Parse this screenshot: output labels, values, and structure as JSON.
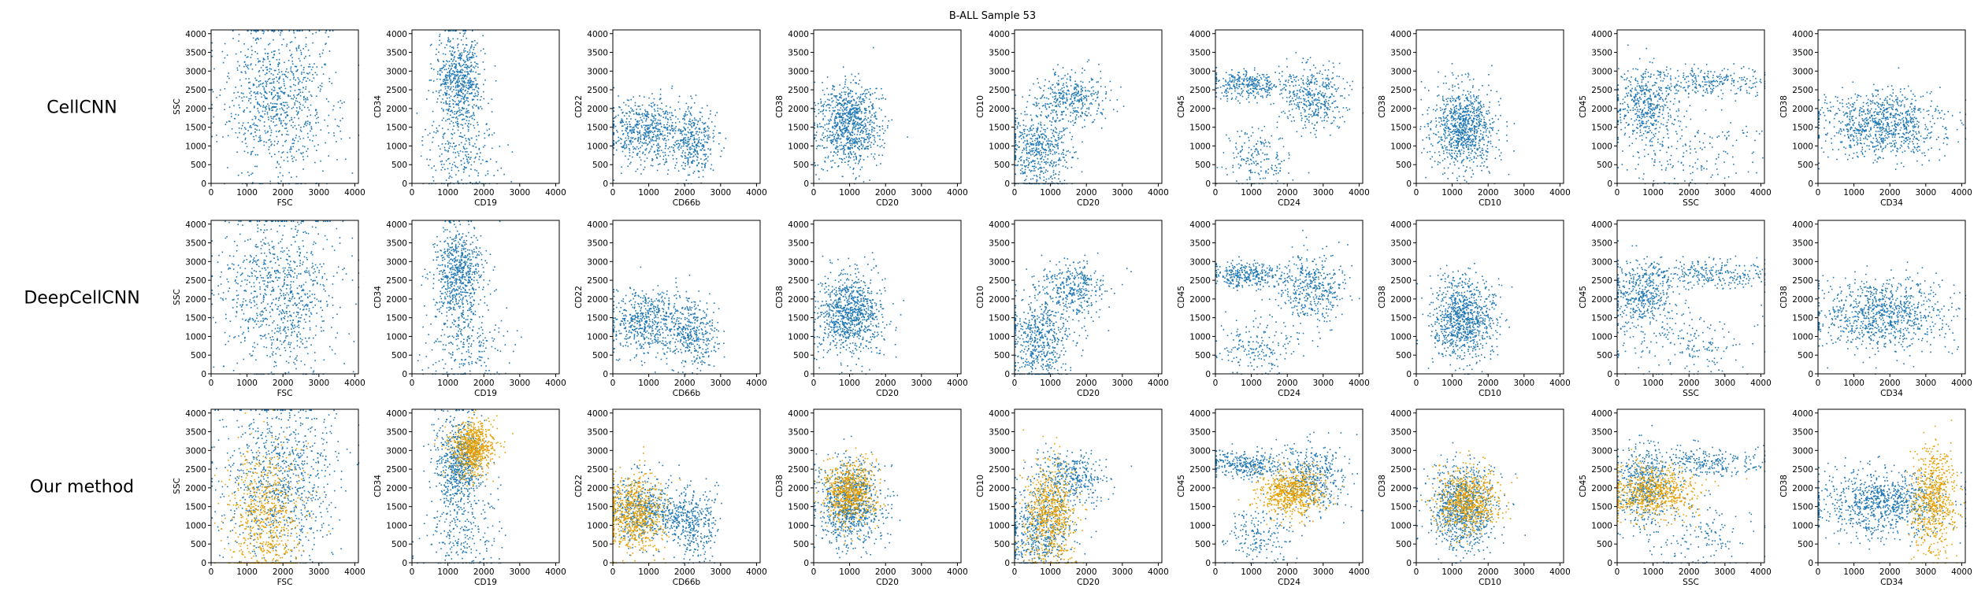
{
  "figure": {
    "title": "B-ALL Sample 53",
    "row_labels": [
      "CellCNN",
      "DeepCellCNN",
      "Our method"
    ],
    "colors": {
      "population_a": "#1f77b4",
      "population_b": "#e69f00"
    }
  },
  "chart_data": {
    "type": "scatter",
    "title": "B-ALL Sample 53",
    "rows": [
      "CellCNN",
      "DeepCellCNN",
      "Our method"
    ],
    "panels": [
      {
        "xlabel": "FSC",
        "ylabel": "SSC"
      },
      {
        "xlabel": "CD19",
        "ylabel": "CD34"
      },
      {
        "xlabel": "CD66b",
        "ylabel": "CD22"
      },
      {
        "xlabel": "CD20",
        "ylabel": "CD38"
      },
      {
        "xlabel": "CD20",
        "ylabel": "CD10"
      },
      {
        "xlabel": "CD24",
        "ylabel": "CD45"
      },
      {
        "xlabel": "CD10",
        "ylabel": "CD38"
      },
      {
        "xlabel": "SSC",
        "ylabel": "CD45"
      },
      {
        "xlabel": "CD34",
        "ylabel": "CD38"
      }
    ],
    "xlim": [
      0,
      4100
    ],
    "ylim": [
      0,
      4100
    ],
    "xticks": [
      0,
      1000,
      2000,
      3000,
      4000
    ],
    "yticks": [
      0,
      500,
      1000,
      1500,
      2000,
      2500,
      3000,
      3500,
      4000
    ],
    "grid": false,
    "series": [
      {
        "color": "#1f77b4",
        "rows": [
          "CellCNN",
          "DeepCellCNN",
          "Our method"
        ],
        "clusters": [
          [
            {
              "cx": 1900,
              "cy": 2200,
              "sx": 800,
              "sy": 1100,
              "w": 1
            }
          ],
          [
            {
              "cx": 1300,
              "cy": 2700,
              "sx": 330,
              "sy": 650,
              "w": 0.75
            },
            {
              "cx": 1400,
              "cy": 800,
              "sx": 550,
              "sy": 600,
              "w": 0.25
            }
          ],
          [
            {
              "cx": 900,
              "cy": 1400,
              "sx": 500,
              "sy": 450,
              "w": 0.6
            },
            {
              "cx": 2200,
              "cy": 1100,
              "sx": 350,
              "sy": 500,
              "w": 0.4
            }
          ],
          [
            {
              "cx": 1000,
              "cy": 1600,
              "sx": 450,
              "sy": 550,
              "w": 1
            }
          ],
          [
            {
              "cx": 700,
              "cy": 900,
              "sx": 450,
              "sy": 600,
              "w": 0.6
            },
            {
              "cx": 1600,
              "cy": 2300,
              "sx": 500,
              "sy": 350,
              "w": 0.4
            }
          ],
          [
            {
              "cx": 2700,
              "cy": 2300,
              "sx": 450,
              "sy": 450,
              "w": 0.45
            },
            {
              "cx": 900,
              "cy": 2650,
              "sx": 500,
              "sy": 180,
              "w": 0.35
            },
            {
              "cx": 1200,
              "cy": 700,
              "sx": 500,
              "sy": 400,
              "w": 0.2
            }
          ],
          [
            {
              "cx": 1300,
              "cy": 1500,
              "sx": 450,
              "sy": 550,
              "w": 1
            }
          ],
          [
            {
              "cx": 700,
              "cy": 2100,
              "sx": 400,
              "sy": 500,
              "w": 0.5
            },
            {
              "cx": 2500,
              "cy": 2700,
              "sx": 900,
              "sy": 200,
              "w": 0.3
            },
            {
              "cx": 2000,
              "cy": 800,
              "sx": 900,
              "sy": 500,
              "w": 0.2
            }
          ],
          [
            {
              "cx": 1800,
              "cy": 1600,
              "sx": 900,
              "sy": 450,
              "w": 1
            }
          ]
        ]
      },
      {
        "color": "#e69f00",
        "rows": [
          "Our method"
        ],
        "clusters": [
          [
            {
              "cx": 1500,
              "cy": 1200,
              "sx": 500,
              "sy": 900,
              "w": 1
            }
          ],
          [
            {
              "cx": 1700,
              "cy": 3100,
              "sx": 300,
              "sy": 350,
              "w": 1
            }
          ],
          [
            {
              "cx": 600,
              "cy": 1300,
              "sx": 400,
              "sy": 500,
              "w": 1
            }
          ],
          [
            {
              "cx": 1000,
              "cy": 1900,
              "sx": 350,
              "sy": 400,
              "w": 1
            }
          ],
          [
            {
              "cx": 1000,
              "cy": 1300,
              "sx": 350,
              "sy": 700,
              "w": 1
            }
          ],
          [
            {
              "cx": 2100,
              "cy": 1900,
              "sx": 450,
              "sy": 300,
              "w": 1
            }
          ],
          [
            {
              "cx": 1400,
              "cy": 1700,
              "sx": 450,
              "sy": 450,
              "w": 1
            }
          ],
          [
            {
              "cx": 1000,
              "cy": 1900,
              "sx": 600,
              "sy": 350,
              "w": 1
            }
          ],
          [
            {
              "cx": 3200,
              "cy": 1700,
              "sx": 300,
              "sy": 700,
              "w": 1
            }
          ]
        ]
      }
    ]
  }
}
